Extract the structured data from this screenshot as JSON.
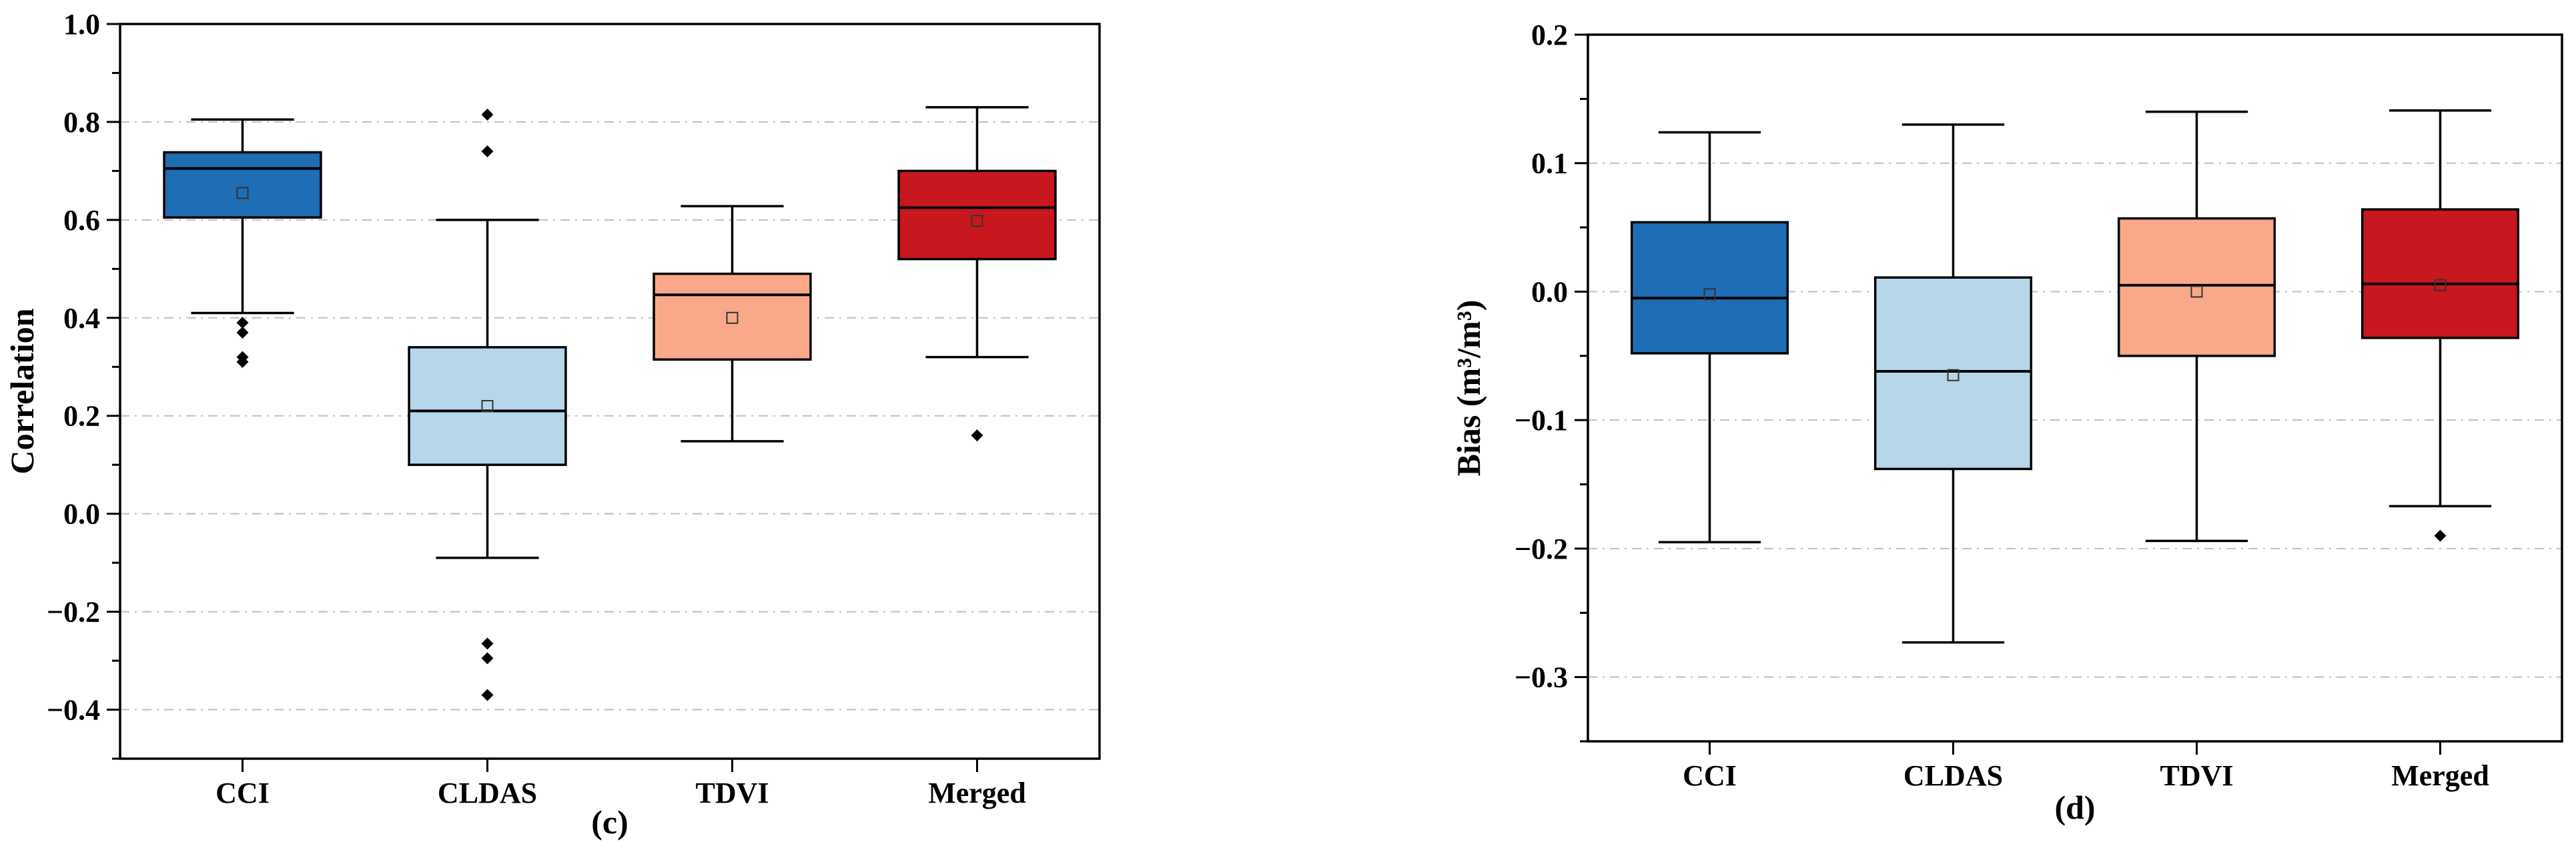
{
  "chart_data": [
    {
      "type": "boxplot",
      "panel_label": "(c)",
      "ylabel": "Correlation",
      "ylim": [
        -0.5,
        1.0
      ],
      "yticks": [
        -0.4,
        -0.2,
        0.0,
        0.2,
        0.4,
        0.6,
        0.8,
        1.0
      ],
      "ytick_labels": [
        "-0.4",
        "-0.2",
        "0.0",
        "0.2",
        "0.4",
        "0.6",
        "0.8",
        "1.0"
      ],
      "grid_lines": [
        -0.4,
        -0.2,
        0.0,
        0.2,
        0.4,
        0.6,
        0.8
      ],
      "grid": true,
      "categories": [
        "CCI",
        "CLDAS",
        "TDVI",
        "Merged"
      ],
      "boxes": [
        {
          "name": "CCI",
          "color": "#1f6db5",
          "whisker_low": 0.41,
          "q1": 0.605,
          "median": 0.705,
          "q3": 0.738,
          "whisker_high": 0.805,
          "mean": 0.655,
          "outliers": [
            0.39,
            0.37,
            0.32,
            0.31
          ]
        },
        {
          "name": "CLDAS",
          "color": "#b7d6ea",
          "whisker_low": -0.09,
          "q1": 0.1,
          "median": 0.21,
          "q3": 0.34,
          "whisker_high": 0.6,
          "mean": 0.22,
          "outliers": [
            0.815,
            0.74,
            -0.265,
            -0.295,
            -0.37
          ]
        },
        {
          "name": "TDVI",
          "color": "#f9a98a",
          "whisker_low": 0.148,
          "q1": 0.315,
          "median": 0.447,
          "q3": 0.49,
          "whisker_high": 0.628,
          "mean": 0.4,
          "outliers": []
        },
        {
          "name": "Merged",
          "color": "#c8171e",
          "whisker_low": 0.32,
          "q1": 0.52,
          "median": 0.625,
          "q3": 0.7,
          "whisker_high": 0.83,
          "mean": 0.598,
          "outliers": [
            0.16
          ]
        }
      ]
    },
    {
      "type": "boxplot",
      "panel_label": "(d)",
      "ylabel": "Bias (m³/m³)",
      "ylim": [
        -0.35,
        0.2
      ],
      "yticks": [
        -0.3,
        -0.2,
        -0.1,
        0.0,
        0.1,
        0.2
      ],
      "ytick_labels": [
        "-0.3",
        "-0.2",
        "-0.1",
        "0.0",
        "0.1",
        "0.2"
      ],
      "grid_lines": [
        -0.3,
        -0.2,
        -0.1,
        0.0,
        0.1
      ],
      "grid": true,
      "categories": [
        "CCI",
        "CLDAS",
        "TDVI",
        "Merged"
      ],
      "boxes": [
        {
          "name": "CCI",
          "color": "#1f6db5",
          "whisker_low": -0.195,
          "q1": -0.048,
          "median": -0.005,
          "q3": 0.054,
          "whisker_high": 0.124,
          "mean": -0.002,
          "outliers": []
        },
        {
          "name": "CLDAS",
          "color": "#b7d6ea",
          "whisker_low": -0.273,
          "q1": -0.138,
          "median": -0.062,
          "q3": 0.011,
          "whisker_high": 0.13,
          "mean": -0.065,
          "outliers": []
        },
        {
          "name": "TDVI",
          "color": "#f9a98a",
          "whisker_low": -0.194,
          "q1": -0.05,
          "median": 0.005,
          "q3": 0.057,
          "whisker_high": 0.14,
          "mean": 0.0,
          "outliers": []
        },
        {
          "name": "Merged",
          "color": "#c8171e",
          "whisker_low": -0.167,
          "q1": -0.036,
          "median": 0.006,
          "q3": 0.064,
          "whisker_high": 0.141,
          "mean": 0.005,
          "outliers": [
            -0.19
          ]
        }
      ]
    }
  ]
}
